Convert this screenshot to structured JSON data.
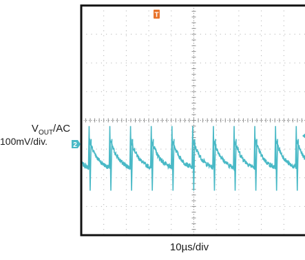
{
  "chart_data": {
    "type": "line",
    "title": "",
    "ylabel_main": "V",
    "ylabel_sub": "OUT",
    "ylabel_suffix": "/AC",
    "y_scale": "100mV/div.",
    "x_scale": "10µs/div",
    "channel_marker": "2",
    "trigger_marker": "T",
    "grid": true,
    "divisions": {
      "x": 10,
      "y": 8
    },
    "series": [
      {
        "color": "#49b9c6",
        "ripple_period_div": 0.92,
        "first_spike_div": 0.35,
        "spike_top_div": 0.8,
        "spike_bottom_div": -1.45,
        "decay_start_div": 0.35,
        "decay_end_div": -0.65,
        "noise_amplitude_div": 0.08
      }
    ],
    "colors": {
      "trace": "#49b9c6",
      "trigger": "#e8742c",
      "grid": "#b3b3b3",
      "frame": "#111111"
    }
  }
}
